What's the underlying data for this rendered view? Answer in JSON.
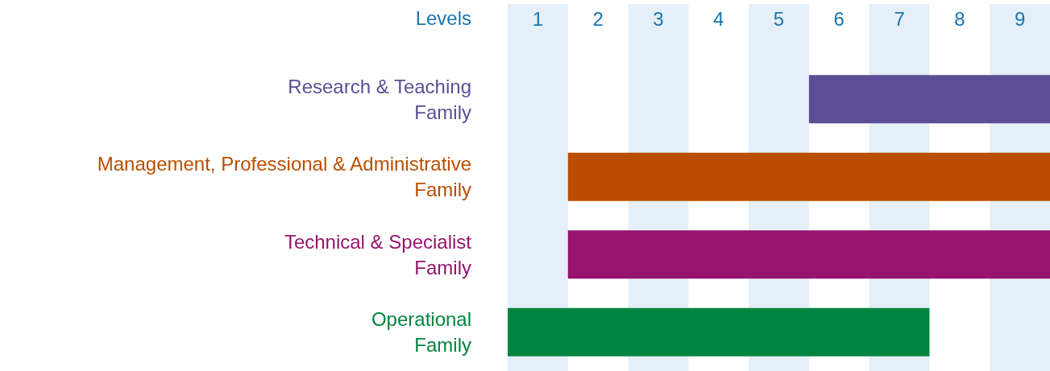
{
  "chart_data": {
    "type": "bar",
    "orientation": "horizontal",
    "xlabel": "Levels",
    "categories": [
      "Research & Teaching\nFamily",
      "Management, Professional & Administrative\nFamily",
      "Technical & Specialist\nFamily",
      "Operational\nFamily"
    ],
    "base": [
      5.5,
      1.5,
      1.5,
      0.5
    ],
    "values": [
      4,
      8,
      8,
      7
    ],
    "colors": [
      "#5b4e96",
      "#bb4d00",
      "#96136e",
      "#008540"
    ],
    "xlim": [
      0.5,
      9.5
    ],
    "xticks": [
      1,
      2,
      3,
      4,
      5,
      6,
      7,
      8,
      9
    ],
    "bands": [
      {
        "axis": "x",
        "from": 0.5,
        "to": 1.5,
        "color": "#e4eff7"
      },
      {
        "axis": "x",
        "from": 2.5,
        "to": 3.5,
        "color": "#e4eff7"
      },
      {
        "axis": "x",
        "from": 4.5,
        "to": 5.5,
        "color": "#e4eff7"
      },
      {
        "axis": "x",
        "from": 6.5,
        "to": 7.5,
        "color": "#e4eff7"
      },
      {
        "axis": "x",
        "from": 8.5,
        "to": 9.5,
        "color": "#e4eff7"
      }
    ],
    "grid": false
  }
}
